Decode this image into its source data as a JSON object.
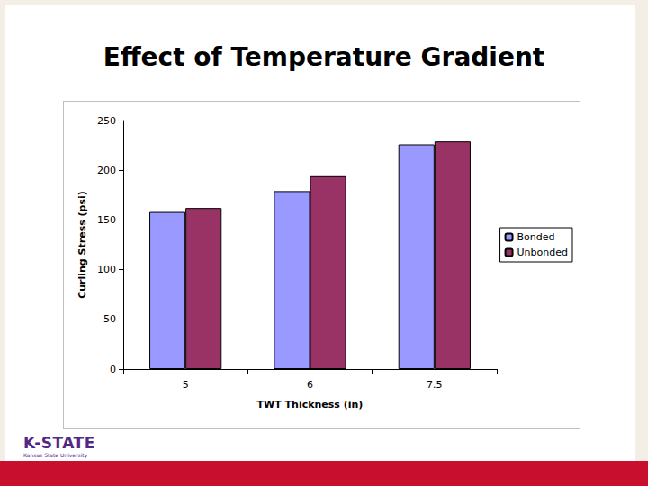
{
  "chart_data": {
    "type": "bar",
    "title": "Effect of Temperature Gradient",
    "x_label": "TWT Thickness (in)",
    "y_label": "Curling Stress (psi)",
    "categories": [
      "5",
      "6",
      "7.5"
    ],
    "series": [
      {
        "name": "Bonded",
        "color": "#9999ff",
        "values": [
          158,
          179,
          226
        ]
      },
      {
        "name": "Unbonded",
        "color": "#993366",
        "values": [
          162,
          194,
          229
        ]
      }
    ],
    "ylim": [
      0,
      250
    ],
    "yticks": [
      0,
      50,
      100,
      150,
      200,
      250
    ],
    "grid": false,
    "legend": "right"
  },
  "footer": {
    "logo": "K-STATE",
    "logo_subtitle": "Kansas State University"
  }
}
